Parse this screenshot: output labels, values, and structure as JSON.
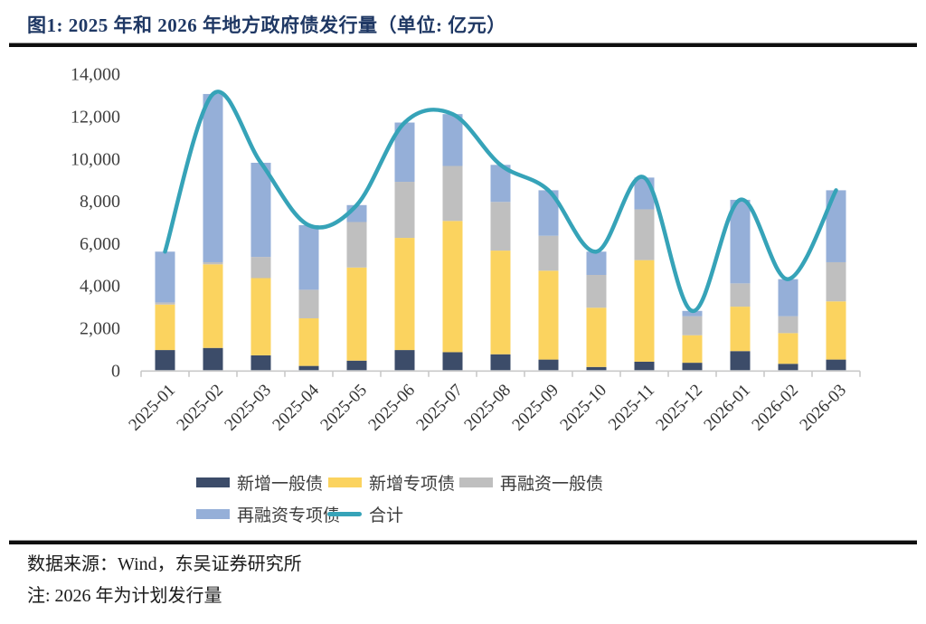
{
  "header": {
    "title": "图1:  2025 年和 2026 年地方政府债发行量（单位: 亿元）"
  },
  "chart_data": {
    "type": "bar",
    "subtype": "stacked-bars-with-total-line",
    "title": "2025 年和 2026 年地方政府债发行量",
    "unit": "亿元",
    "categories": [
      "2025-01",
      "2025-02",
      "2025-03",
      "2025-04",
      "2025-05",
      "2025-06",
      "2025-07",
      "2025-08",
      "2025-09",
      "2025-10",
      "2025-11",
      "2025-12",
      "2026-01",
      "2026-02",
      "2026-03"
    ],
    "series": [
      {
        "name": "新增一般债",
        "color": "#3C4C69",
        "values": [
          950,
          1050,
          700,
          200,
          450,
          950,
          850,
          750,
          500,
          150,
          400,
          350,
          900,
          300,
          500
        ]
      },
      {
        "name": "新增专项债",
        "color": "#FBD35F",
        "values": [
          2150,
          3950,
          3650,
          2250,
          4400,
          5300,
          6200,
          4900,
          4200,
          2800,
          4800,
          1300,
          2100,
          1450,
          2750
        ]
      },
      {
        "name": "再融资一般债",
        "color": "#BFBFBF",
        "values": [
          100,
          100,
          1000,
          1350,
          2150,
          2650,
          2600,
          2300,
          1650,
          1550,
          2400,
          900,
          1100,
          800,
          1850
        ]
      },
      {
        "name": "再融资专项债",
        "color": "#95AFD8",
        "values": [
          2400,
          7950,
          4450,
          3050,
          800,
          2800,
          2450,
          1750,
          2150,
          1100,
          1500,
          250,
          3950,
          1750,
          3400
        ]
      }
    ],
    "line_series": {
      "name": "合计",
      "color": "#36A3B8",
      "values": [
        5600,
        13050,
        9800,
        6850,
        7800,
        11700,
        12100,
        9700,
        8500,
        5600,
        9100,
        2800,
        8050,
        4300,
        8500
      ]
    },
    "xlabel": "",
    "ylabel": "",
    "ylim": [
      0,
      14000
    ],
    "ytick_step": 2000,
    "grid": false,
    "legend_position": "bottom"
  },
  "legend": {
    "items": [
      {
        "key": "new-general-bond",
        "label": "新增一般债",
        "color": "#3C4C69",
        "type": "box"
      },
      {
        "key": "new-special-bond",
        "label": "新增专项债",
        "color": "#FBD35F",
        "type": "box"
      },
      {
        "key": "refinancing-general-bond",
        "label": "再融资一般债",
        "color": "#BFBFBF",
        "type": "box"
      },
      {
        "key": "refinancing-special-bond",
        "label": "再融资专项债",
        "color": "#95AFD8",
        "type": "box"
      },
      {
        "key": "total",
        "label": "合计",
        "color": "#36A3B8",
        "type": "line"
      }
    ]
  },
  "footer": {
    "source": "数据来源：Wind，东吴证券研究所",
    "note": "注:  2026 年为计划发行量"
  }
}
